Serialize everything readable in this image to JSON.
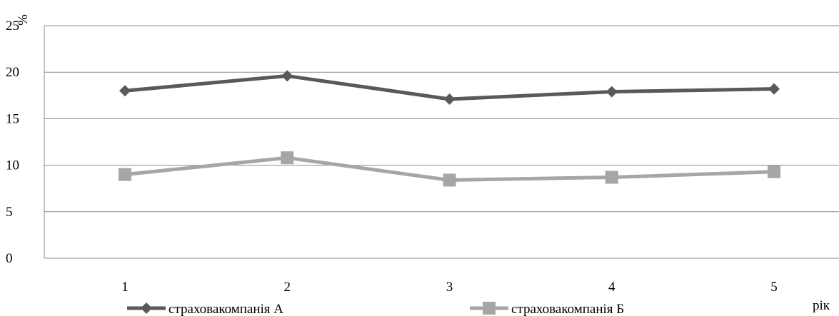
{
  "chart_data": {
    "type": "line",
    "categories": [
      "1",
      "2",
      "3",
      "4",
      "5"
    ],
    "yticks": [
      "0",
      "5",
      "10",
      "15",
      "20",
      "25"
    ],
    "ylim": [
      0,
      25
    ],
    "ylabel": "%",
    "xlabel": "рік",
    "grid": true,
    "legend_position": "bottom",
    "series": [
      {
        "name": "страховакомпанія А",
        "values": [
          18.0,
          19.6,
          17.1,
          17.9,
          18.2
        ],
        "color": "#595959",
        "marker": "diamond"
      },
      {
        "name": "страховакомпанія Б",
        "values": [
          9.0,
          10.8,
          8.4,
          8.7,
          9.3
        ],
        "color": "#a6a6a6",
        "marker": "square"
      }
    ]
  }
}
